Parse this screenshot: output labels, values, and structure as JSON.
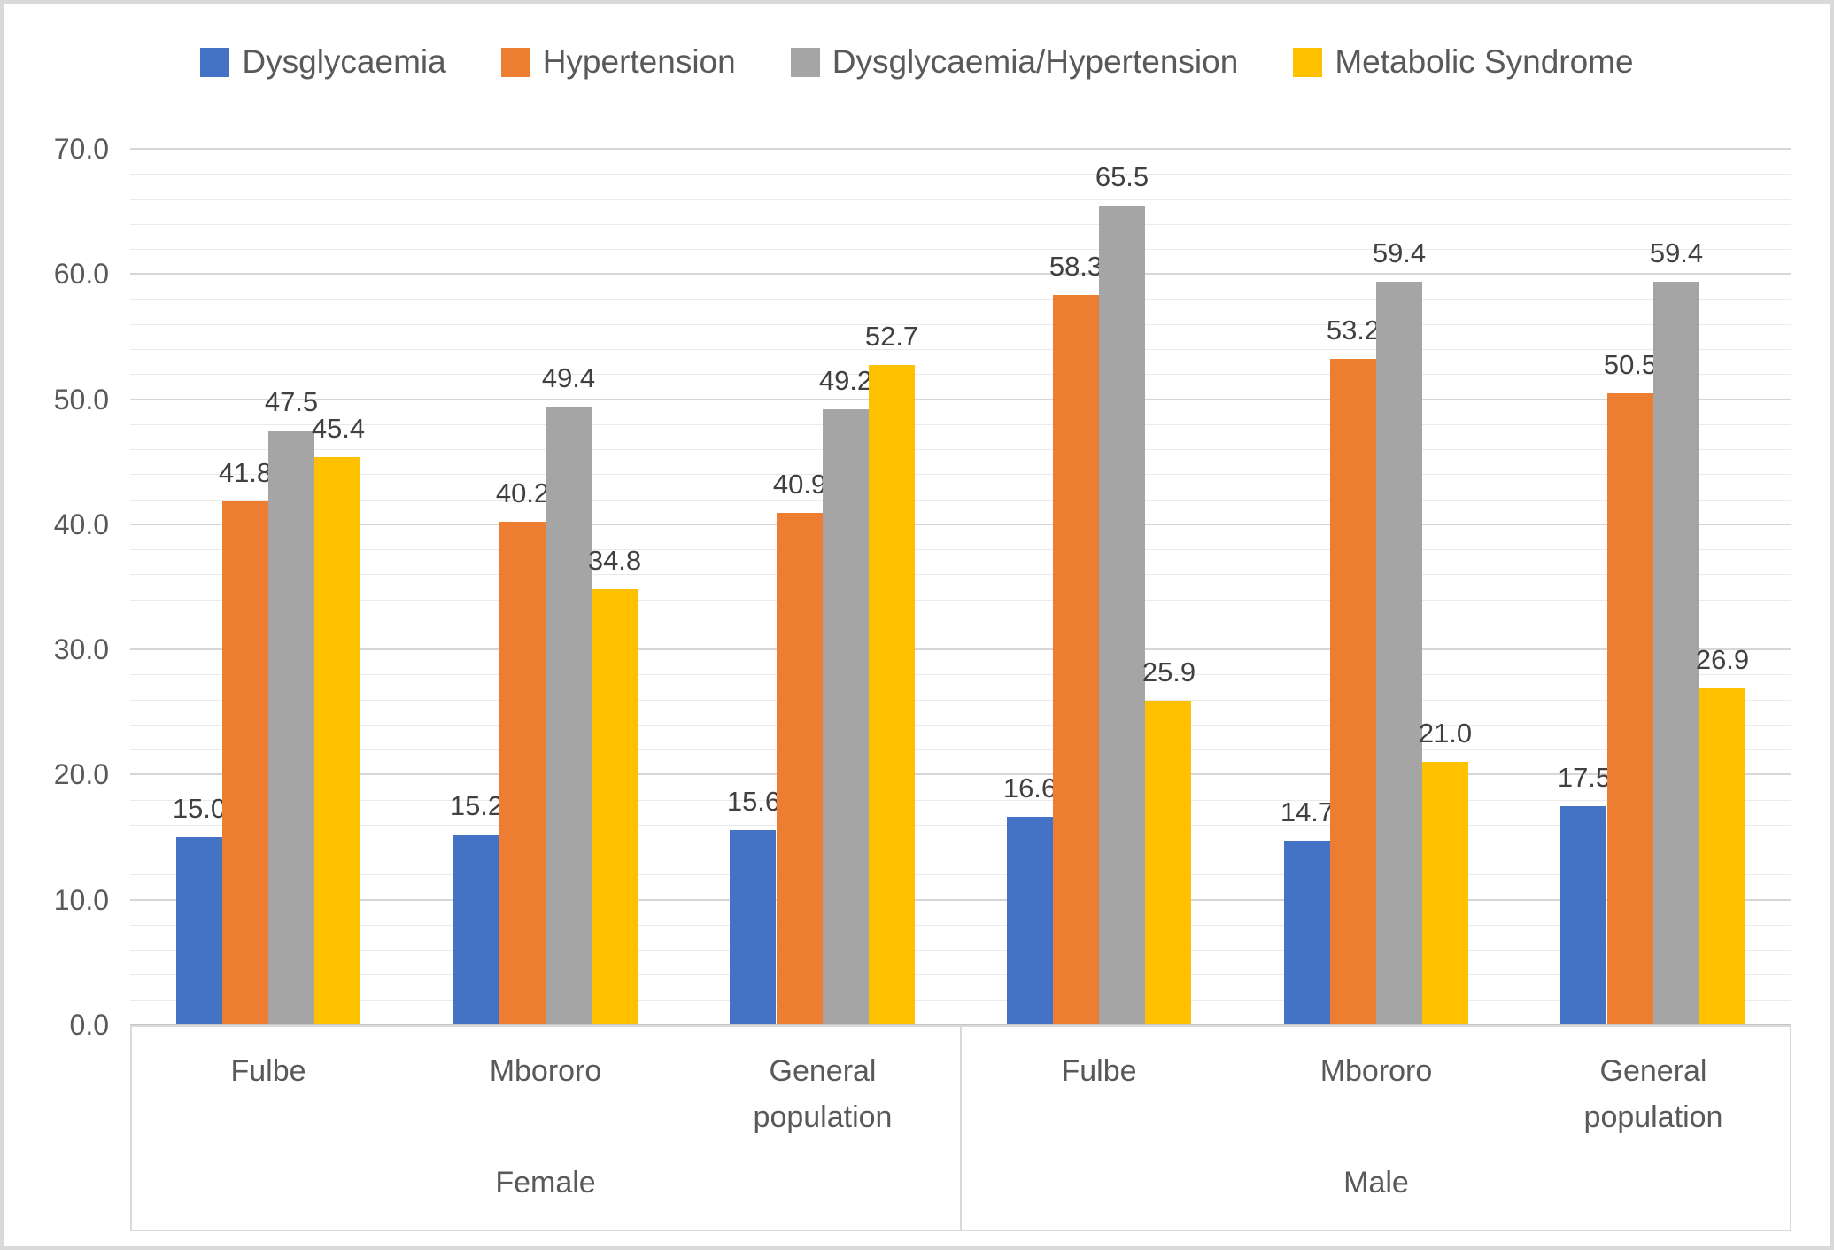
{
  "chart_data": {
    "type": "bar",
    "title": "",
    "legend_position": "top",
    "grid": true,
    "ylim": [
      0,
      70
    ],
    "y_major_step": 10,
    "y_minor_step": 2,
    "y_tick_labels": [
      "0.0",
      "10.0",
      "20.0",
      "30.0",
      "40.0",
      "50.0",
      "60.0",
      "70.0"
    ],
    "groups": [
      {
        "label": "Female",
        "categories": [
          "Fulbe",
          "Mbororo",
          "General population"
        ]
      },
      {
        "label": "Male",
        "categories": [
          "Fulbe",
          "Mbororo",
          "General population"
        ]
      }
    ],
    "series": [
      {
        "name": "Dysglycaemia",
        "color": "#4472C4",
        "values": [
          15.0,
          15.2,
          15.6,
          16.6,
          14.7,
          17.5
        ]
      },
      {
        "name": "Hypertension",
        "color": "#ED7D31",
        "values": [
          41.8,
          40.2,
          40.9,
          58.3,
          53.2,
          50.5
        ]
      },
      {
        "name": "Dysglycaemia/Hypertension",
        "color": "#A5A5A5",
        "values": [
          47.5,
          49.4,
          49.2,
          65.5,
          59.4,
          59.4
        ]
      },
      {
        "name": "Metabolic Syndrome",
        "color": "#FFC000",
        "values": [
          45.4,
          34.8,
          52.7,
          25.9,
          21.0,
          26.9
        ]
      }
    ],
    "value_labels_visible": true,
    "colors": {
      "axis_text": "#595959",
      "value_label_text": "#404040",
      "minor_gridline": "#eaeaea",
      "major_gridline": "#d6d6d6",
      "axis_line": "#c6c6c6",
      "axis_box_border": "#d9d9d9",
      "chart_border": "#d9d9d9",
      "background": "#ffffff"
    }
  }
}
